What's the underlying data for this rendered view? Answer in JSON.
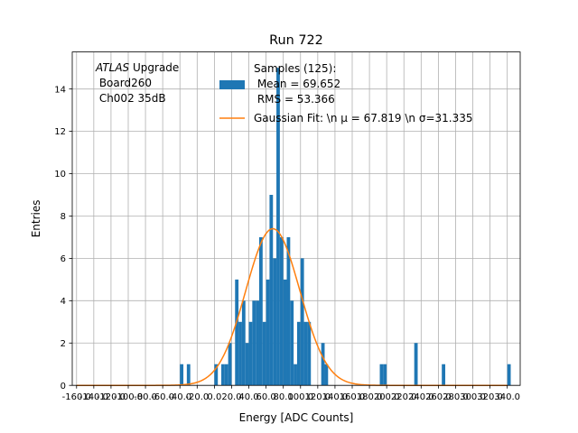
{
  "chart_data": {
    "type": "bar",
    "title": "Run 722",
    "xlabel": "Energy [ADC Counts]",
    "ylabel": "Entries",
    "xlim": [
      -165,
      355
    ],
    "ylim": [
      0,
      15.75
    ],
    "grid": true,
    "x_ticks": [
      -160.0,
      -140.0,
      -120.0,
      -100.0,
      -80.0,
      -60.0,
      -40.0,
      -20.0,
      0.0,
      20.0,
      40.0,
      60.0,
      80.0,
      100.0,
      120.0,
      140.0,
      160.0,
      180.0,
      200.0,
      220.0,
      240.0,
      260.0,
      280.0,
      300.0,
      320.0,
      340.0
    ],
    "x_tick_labels": [
      "-160.0",
      "-140.0",
      "-120.0",
      "-100.0",
      "-80.0",
      "-60.0",
      "-40.0",
      "-20.0",
      "0.0",
      "20.0",
      "40.0",
      "60.0",
      "80.0",
      "100.0",
      "120.0",
      "140.0",
      "160.0",
      "180.0",
      "200.0",
      "220.0",
      "240.0",
      "260.0",
      "280.0",
      "300.0",
      "320.0",
      "340.0"
    ],
    "y_ticks": [
      0,
      2,
      4,
      6,
      8,
      10,
      12,
      14
    ],
    "bin_width": 4,
    "bins": [
      {
        "x": -40,
        "count": 1
      },
      {
        "x": -32,
        "count": 1
      },
      {
        "x": 0,
        "count": 1
      },
      {
        "x": 8,
        "count": 1
      },
      {
        "x": 12,
        "count": 1
      },
      {
        "x": 16,
        "count": 2
      },
      {
        "x": 24,
        "count": 5
      },
      {
        "x": 28,
        "count": 3
      },
      {
        "x": 32,
        "count": 4
      },
      {
        "x": 36,
        "count": 2
      },
      {
        "x": 40,
        "count": 3
      },
      {
        "x": 44,
        "count": 4
      },
      {
        "x": 48,
        "count": 4
      },
      {
        "x": 52,
        "count": 7
      },
      {
        "x": 56,
        "count": 3
      },
      {
        "x": 60,
        "count": 5
      },
      {
        "x": 64,
        "count": 9
      },
      {
        "x": 68,
        "count": 6
      },
      {
        "x": 72,
        "count": 15
      },
      {
        "x": 76,
        "count": 7
      },
      {
        "x": 80,
        "count": 5
      },
      {
        "x": 84,
        "count": 7
      },
      {
        "x": 88,
        "count": 4
      },
      {
        "x": 92,
        "count": 1
      },
      {
        "x": 96,
        "count": 3
      },
      {
        "x": 100,
        "count": 6
      },
      {
        "x": 104,
        "count": 3
      },
      {
        "x": 108,
        "count": 3
      },
      {
        "x": 124,
        "count": 2
      },
      {
        "x": 128,
        "count": 1
      },
      {
        "x": 192,
        "count": 1
      },
      {
        "x": 196,
        "count": 1
      },
      {
        "x": 232,
        "count": 2
      },
      {
        "x": 264,
        "count": 1
      },
      {
        "x": 340,
        "count": 1
      }
    ],
    "fit": {
      "type": "gaussian",
      "amplitude": 7.4,
      "mu": 67.819,
      "sigma": 31.335,
      "x_range": [
        -160,
        340
      ]
    },
    "legend": {
      "position": "top-right",
      "entries": [
        {
          "label_lines": [
            "Samples (125):",
            " Mean = 69.652",
            " RMS = 53.366"
          ],
          "marker": "patch"
        },
        {
          "label_lines": [
            "Gaussian Fit: \\n μ = 67.819 \\n σ=31.335"
          ],
          "marker": "line"
        }
      ]
    },
    "annotation": {
      "lines": [
        "ATLAS Upgrade",
        " Board260",
        " Ch002 35dB"
      ],
      "italic_word": "ATLAS"
    },
    "colors": {
      "bars": "#1f77b4",
      "fit": "#ff7f0e",
      "grid": "#b0b0b0"
    }
  }
}
